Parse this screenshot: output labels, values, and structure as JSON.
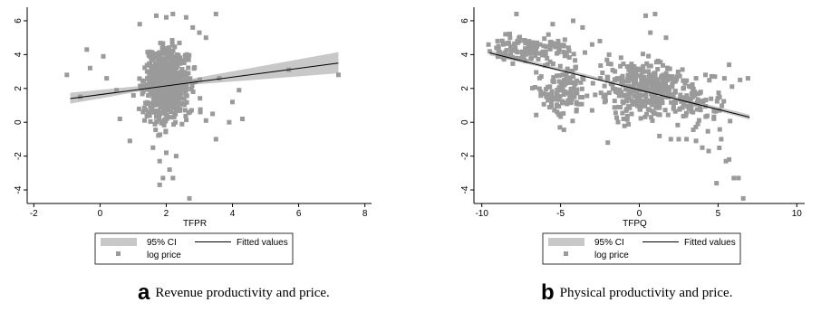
{
  "colors": {
    "scatter": "#9a9a9a",
    "ci_band": "#c8c8c8",
    "fit_line": "#000000",
    "axis": "#000000"
  },
  "legend": {
    "ci_label": "95% CI",
    "fit_label": "Fitted values",
    "scatter_label": "log price"
  },
  "chart_data": [
    {
      "type": "scatter",
      "xlabel": "TFPR",
      "ylabel": "",
      "xlim": [
        -2.2,
        8.2
      ],
      "ylim": [
        -4.8,
        6.8
      ],
      "xticks": [
        "-2",
        "0",
        "2",
        "4",
        "6",
        "8"
      ],
      "yticks": [
        "-4",
        "-2",
        "0",
        "2",
        "4",
        "6"
      ],
      "grid": false,
      "legend_position": "bottom",
      "caption_letter": "a",
      "caption": "Revenue productivity and price.",
      "series": [
        {
          "name": "log price",
          "type": "scatter",
          "cloud": [
            {
              "cx": 2.0,
              "cy": 2.2,
              "sx": 0.33,
              "sy": 1.05,
              "n": 650
            }
          ],
          "points": [
            [
              1.7,
              6.3
            ],
            [
              2.0,
              6.2
            ],
            [
              2.2,
              6.4
            ],
            [
              2.6,
              6.2
            ],
            [
              3.5,
              6.4
            ],
            [
              1.2,
              5.8
            ],
            [
              2.8,
              5.6
            ],
            [
              3.0,
              5.3
            ],
            [
              3.2,
              5.0
            ],
            [
              -1.0,
              2.8
            ],
            [
              -0.6,
              1.5
            ],
            [
              -0.4,
              4.3
            ],
            [
              -0.3,
              3.2
            ],
            [
              0.1,
              3.9
            ],
            [
              0.2,
              2.6
            ],
            [
              0.5,
              1.9
            ],
            [
              0.6,
              0.2
            ],
            [
              0.9,
              -1.1
            ],
            [
              3.2,
              0.1
            ],
            [
              3.4,
              0.5
            ],
            [
              3.5,
              -1.0
            ],
            [
              3.6,
              2.6
            ],
            [
              3.9,
              0.0
            ],
            [
              4.0,
              1.2
            ],
            [
              4.2,
              1.9
            ],
            [
              4.3,
              0.2
            ],
            [
              5.7,
              3.1
            ],
            [
              7.2,
              2.8
            ],
            [
              2.0,
              -1.8
            ],
            [
              1.8,
              -2.3
            ],
            [
              2.1,
              -2.8
            ],
            [
              1.9,
              -3.3
            ],
            [
              2.2,
              -3.3
            ],
            [
              1.8,
              -3.7
            ],
            [
              2.7,
              -4.5
            ],
            [
              2.3,
              -2.0
            ],
            [
              1.6,
              -1.5
            ]
          ]
        },
        {
          "name": "Fitted values",
          "type": "line",
          "x": [
            -0.9,
            7.2
          ],
          "y": [
            1.4,
            3.5
          ]
        },
        {
          "name": "95% CI",
          "type": "band",
          "x": [
            -0.9,
            2.0,
            7.2
          ],
          "lower": [
            1.1,
            2.1,
            2.9
          ],
          "upper": [
            1.75,
            2.3,
            4.15
          ]
        }
      ]
    },
    {
      "type": "scatter",
      "xlabel": "TFPQ",
      "ylabel": "",
      "xlim": [
        -10.5,
        10.5
      ],
      "ylim": [
        -4.8,
        6.8
      ],
      "xticks": [
        "-10",
        "-5",
        "0",
        "5",
        "10"
      ],
      "yticks": [
        "-4",
        "-2",
        "0",
        "2",
        "4",
        "6"
      ],
      "grid": false,
      "legend_position": "bottom",
      "caption_letter": "b",
      "caption": "Physical productivity and price.",
      "series": [
        {
          "name": "log price",
          "type": "scatter",
          "cloud": [
            {
              "cx": -7.0,
              "cy": 4.3,
              "sx": 1.3,
              "sy": 0.35,
              "n": 120
            },
            {
              "cx": -4.8,
              "cy": 2.0,
              "sx": 0.8,
              "sy": 1.0,
              "n": 140
            },
            {
              "cx": 0.3,
              "cy": 2.0,
              "sx": 1.3,
              "sy": 0.85,
              "n": 360
            },
            {
              "cx": 3.8,
              "cy": 1.0,
              "sx": 0.9,
              "sy": 0.8,
              "n": 70
            }
          ],
          "points": [
            [
              -9.0,
              4.8
            ],
            [
              -8.5,
              5.2
            ],
            [
              -7.8,
              6.4
            ],
            [
              -5.5,
              5.8
            ],
            [
              -4.2,
              6.0
            ],
            [
              -3.6,
              5.6
            ],
            [
              -3.0,
              4.6
            ],
            [
              -2.5,
              4.8
            ],
            [
              -3.0,
              0.7
            ],
            [
              -2.2,
              1.2
            ],
            [
              -2.0,
              -1.2
            ],
            [
              -1.4,
              2.6
            ],
            [
              -1.0,
              0.2
            ],
            [
              0.4,
              6.3
            ],
            [
              1.0,
              6.4
            ],
            [
              0.7,
              5.3
            ],
            [
              1.7,
              5.0
            ],
            [
              2.4,
              2.7
            ],
            [
              3.6,
              2.6
            ],
            [
              4.2,
              2.8
            ],
            [
              4.8,
              2.7
            ],
            [
              5.4,
              2.6
            ],
            [
              6.4,
              2.5
            ],
            [
              5.7,
              3.4
            ],
            [
              6.9,
              2.6
            ],
            [
              2.0,
              -1.0
            ],
            [
              2.5,
              -1.0
            ],
            [
              3.0,
              -1.0
            ],
            [
              3.6,
              -1.1
            ],
            [
              4.0,
              -1.5
            ],
            [
              4.4,
              -1.7
            ],
            [
              5.2,
              -1.0
            ],
            [
              4.9,
              -3.6
            ],
            [
              5.5,
              -2.3
            ],
            [
              5.7,
              -2.2
            ],
            [
              6.0,
              -3.3
            ],
            [
              6.3,
              -3.3
            ],
            [
              6.6,
              -4.5
            ]
          ]
        },
        {
          "name": "Fitted values",
          "type": "line",
          "x": [
            -9.5,
            7.0
          ],
          "y": [
            4.1,
            0.3
          ]
        },
        {
          "name": "95% CI",
          "type": "band",
          "x": [
            -9.5,
            0.0,
            7.0
          ],
          "lower": [
            3.95,
            1.95,
            0.15
          ],
          "upper": [
            4.25,
            2.05,
            0.45
          ]
        }
      ]
    }
  ]
}
